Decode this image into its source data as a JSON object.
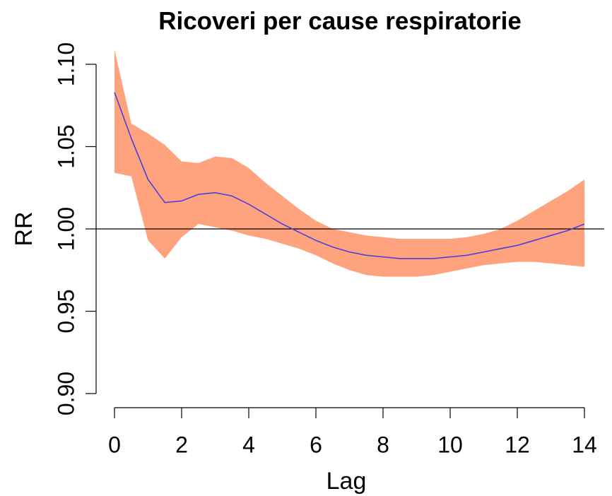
{
  "chart_data": {
    "type": "line",
    "title": "Ricoveri per cause respiratorie",
    "x_label": "Lag",
    "y_label": "RR",
    "x": [
      0,
      0.5,
      1,
      1.5,
      2,
      2.5,
      3,
      3.5,
      4,
      4.5,
      5,
      5.5,
      6,
      6.5,
      7,
      7.5,
      8,
      8.5,
      9,
      9.5,
      10,
      10.5,
      11,
      11.5,
      12,
      12.5,
      13,
      13.5,
      14
    ],
    "values": [
      1.083,
      1.055,
      1.03,
      1.016,
      1.017,
      1.021,
      1.022,
      1.02,
      1.015,
      1.009,
      1.003,
      0.998,
      0.993,
      0.989,
      0.986,
      0.984,
      0.983,
      0.982,
      0.982,
      0.982,
      0.983,
      0.984,
      0.986,
      0.988,
      0.99,
      0.993,
      0.996,
      0.999,
      1.003
    ],
    "ci_upper": [
      1.109,
      1.064,
      1.058,
      1.051,
      1.041,
      1.04,
      1.044,
      1.043,
      1.037,
      1.028,
      1.02,
      1.012,
      1.005,
      1.0,
      0.998,
      0.996,
      0.995,
      0.994,
      0.994,
      0.994,
      0.994,
      0.995,
      0.997,
      1.0,
      1.005,
      1.011,
      1.017,
      1.023,
      1.03
    ],
    "ci_lower": [
      1.034,
      1.032,
      0.993,
      0.982,
      0.995,
      1.003,
      1.001,
      0.999,
      0.996,
      0.994,
      0.991,
      0.988,
      0.984,
      0.979,
      0.975,
      0.972,
      0.971,
      0.971,
      0.971,
      0.972,
      0.974,
      0.976,
      0.978,
      0.979,
      0.98,
      0.98,
      0.979,
      0.978,
      0.977
    ],
    "color": "#4b3fe0",
    "band_color": "#ffa37f",
    "hline": 1,
    "xlim": [
      0,
      14
    ],
    "xticks": [
      0,
      2,
      4,
      6,
      8,
      10,
      12,
      14
    ],
    "ylim": [
      0.89,
      1.11
    ],
    "yticks": [
      {
        "value": 0.9,
        "label": "0.90"
      },
      {
        "value": 0.95,
        "label": "0.95"
      },
      {
        "value": 1,
        "label": "1.00"
      },
      {
        "value": 1.05,
        "label": "1.05"
      },
      {
        "value": 1.1,
        "label": "1.10"
      }
    ]
  }
}
